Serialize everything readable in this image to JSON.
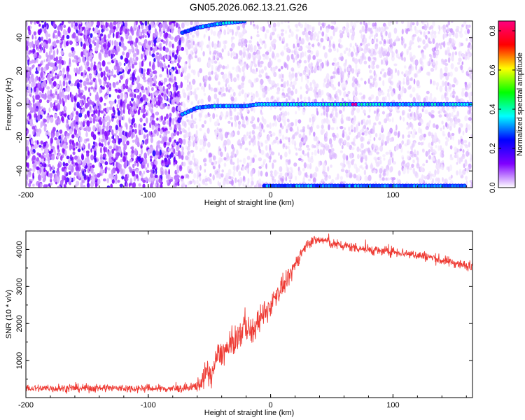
{
  "title": "GN05.2026.062.13.21.G26",
  "chart_data": [
    {
      "type": "heatmap",
      "xlabel": "Height of straight line (km)",
      "ylabel": "Frequency (Hz)",
      "xlim": [
        -200,
        165
      ],
      "ylim": [
        -50,
        50
      ],
      "xticks": [
        "-200",
        "-100",
        "0",
        "100"
      ],
      "yticks": [
        "-40",
        "-20",
        "0",
        "20",
        "40"
      ],
      "colorbar": {
        "label": "Normalized spectral amplitude",
        "range": [
          0,
          0.85
        ],
        "ticks": [
          "0.0",
          "0.2",
          "0.4",
          "0.6",
          "0.8"
        ],
        "colors": [
          "#ffffff",
          "#8000ff",
          "#0000ff",
          "#00ffff",
          "#00ff00",
          "#ffff00",
          "#ff0000",
          "#ff0080"
        ]
      },
      "noise_floor": [
        {
          "x_from": -200,
          "x_to": -72,
          "density": "high",
          "amplitude": 0.12
        },
        {
          "x_from": -72,
          "x_to": 165,
          "density": "low",
          "amplitude": 0.04
        }
      ],
      "ridges": [
        {
          "name": "",
          "x": [
            -72,
            -60,
            -45,
            -30,
            -20,
            -10,
            0,
            50,
            100,
            165
          ],
          "y": [
            -6,
            -2,
            -1,
            -1,
            -1,
            0,
            0,
            0,
            0,
            0
          ],
          "amplitude": [
            0.3,
            0.3,
            0.35,
            0.3,
            0.3,
            0.32,
            0.35,
            0.4,
            0.35,
            0.35
          ],
          "peak": {
            "x": 68,
            "y": 0,
            "amplitude": 0.85
          }
        },
        {
          "name": "",
          "x": [
            -72,
            -60,
            -45,
            -35,
            -20
          ],
          "y": [
            43,
            46,
            48,
            49,
            50
          ],
          "amplitude": [
            0.3,
            0.3,
            0.35,
            0.35,
            0.3
          ]
        },
        {
          "name": "",
          "x": [
            -5,
            50,
            100,
            160
          ],
          "y": [
            -49,
            -49,
            -49,
            -49
          ],
          "amplitude": [
            0.3,
            0.3,
            0.3,
            0.3
          ]
        }
      ]
    },
    {
      "type": "line",
      "xlabel": "Height of straight line (km)",
      "ylabel": "SNR (10 * v/v)",
      "xlim": [
        -200,
        165
      ],
      "ylim": [
        0,
        4500
      ],
      "xticks": [
        "-200",
        "-100",
        "0",
        "100"
      ],
      "yticks": [
        "1000",
        "2000",
        "3000",
        "4000"
      ],
      "color": "#ee3a33",
      "series": [
        {
          "name": "",
          "x": [
            -200,
            -180,
            -160,
            -140,
            -120,
            -100,
            -80,
            -65,
            -57,
            -52,
            -48,
            -44,
            -40,
            -35,
            -30,
            -25,
            -20,
            -15,
            -10,
            -5,
            0,
            5,
            10,
            15,
            20,
            25,
            30,
            35,
            40,
            45,
            50,
            60,
            70,
            80,
            90,
            100,
            110,
            120,
            130,
            140,
            150,
            160,
            165
          ],
          "y": [
            250,
            250,
            250,
            260,
            250,
            250,
            240,
            250,
            400,
            700,
            600,
            1100,
            1200,
            1300,
            1500,
            1700,
            2000,
            1700,
            2100,
            2200,
            2500,
            2800,
            3000,
            3200,
            3600,
            3900,
            4150,
            4250,
            4250,
            4250,
            4150,
            4100,
            4050,
            4000,
            3950,
            3950,
            3900,
            3850,
            3800,
            3700,
            3650,
            3550,
            3600
          ],
          "noise_amplitude": [
            120,
            120,
            120,
            130,
            120,
            120,
            120,
            120,
            250,
            400,
            350,
            350,
            400,
            400,
            400,
            400,
            500,
            400,
            400,
            400,
            350,
            300,
            300,
            250,
            250,
            200,
            150,
            150,
            150,
            150,
            150,
            150,
            150,
            150,
            150,
            150,
            150,
            150,
            150,
            150,
            150,
            150,
            150
          ]
        }
      ]
    }
  ]
}
